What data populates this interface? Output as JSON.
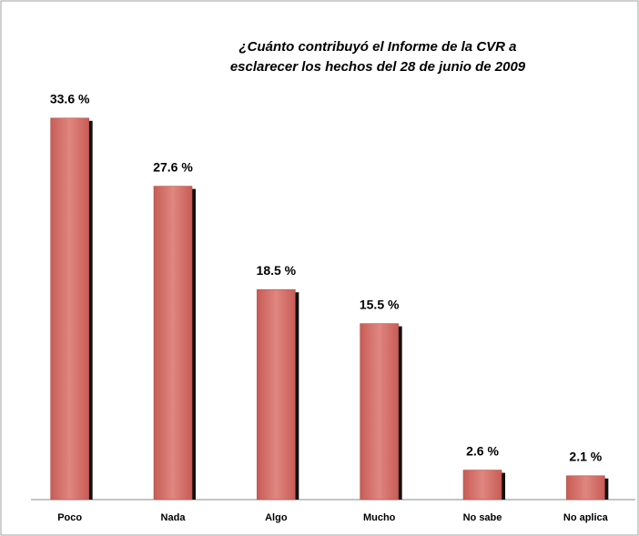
{
  "chart_data": {
    "type": "bar",
    "title": [
      "¿Cuánto contribuyó el Informe de la CVR a",
      "esclarecer los hechos del 28 de junio de 2009"
    ],
    "categories": [
      "Poco",
      "Nada",
      "Algo",
      "Mucho",
      "No sabe",
      "No aplica"
    ],
    "values": [
      33.6,
      27.6,
      18.5,
      15.5,
      2.6,
      2.1
    ],
    "value_labels": [
      "33.6 %",
      "27.6 %",
      "18.5 %",
      "15.5 %",
      "2.6 %",
      "2.1 %"
    ],
    "color": "#d9716b",
    "ylim": [
      0,
      44
    ]
  }
}
